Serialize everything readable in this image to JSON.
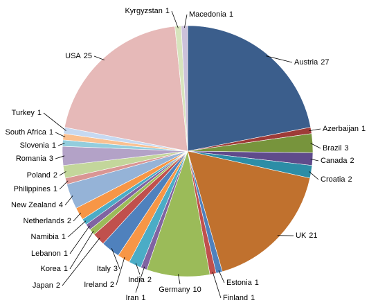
{
  "chart_data": {
    "type": "pie",
    "categories": [
      "Austria",
      "Azerbaijan",
      "Brazil",
      "Canada",
      "Croatia",
      "UK",
      "Estonia",
      "Finland",
      "Germany",
      "Iran",
      "India",
      "Ireland",
      "Italy",
      "Japan",
      "Korea",
      "Lebanon",
      "Namibia",
      "Netherlands",
      "New Zealand",
      "Philippines",
      "Poland",
      "Romania",
      "Slovenia",
      "South Africa",
      "Turkey",
      "USA",
      "Kyrgyzstan",
      "Macedonia"
    ],
    "values": [
      27,
      1,
      3,
      2,
      2,
      21,
      1,
      1,
      10,
      1,
      2,
      2,
      3,
      2,
      1,
      1,
      1,
      2,
      4,
      1,
      2,
      3,
      1,
      1,
      1,
      25,
      1,
      1
    ],
    "colors": [
      "#3B5E8C",
      "#9E3B38",
      "#77943C",
      "#5F4B8B",
      "#2C8DA6",
      "#C0712E",
      "#4F81BD",
      "#C0504D",
      "#9BBB59",
      "#8064A2",
      "#4BACC6",
      "#F79646",
      "#4F81BD",
      "#C0504D",
      "#9BBB59",
      "#8064A2",
      "#4BACC6",
      "#F79646",
      "#95B3D7",
      "#D99694",
      "#C3D69B",
      "#B3A2C7",
      "#93CDDD",
      "#FAC090",
      "#C6D9F1",
      "#E6B9B8",
      "#D7E4BD",
      "#CCC1DA"
    ]
  }
}
